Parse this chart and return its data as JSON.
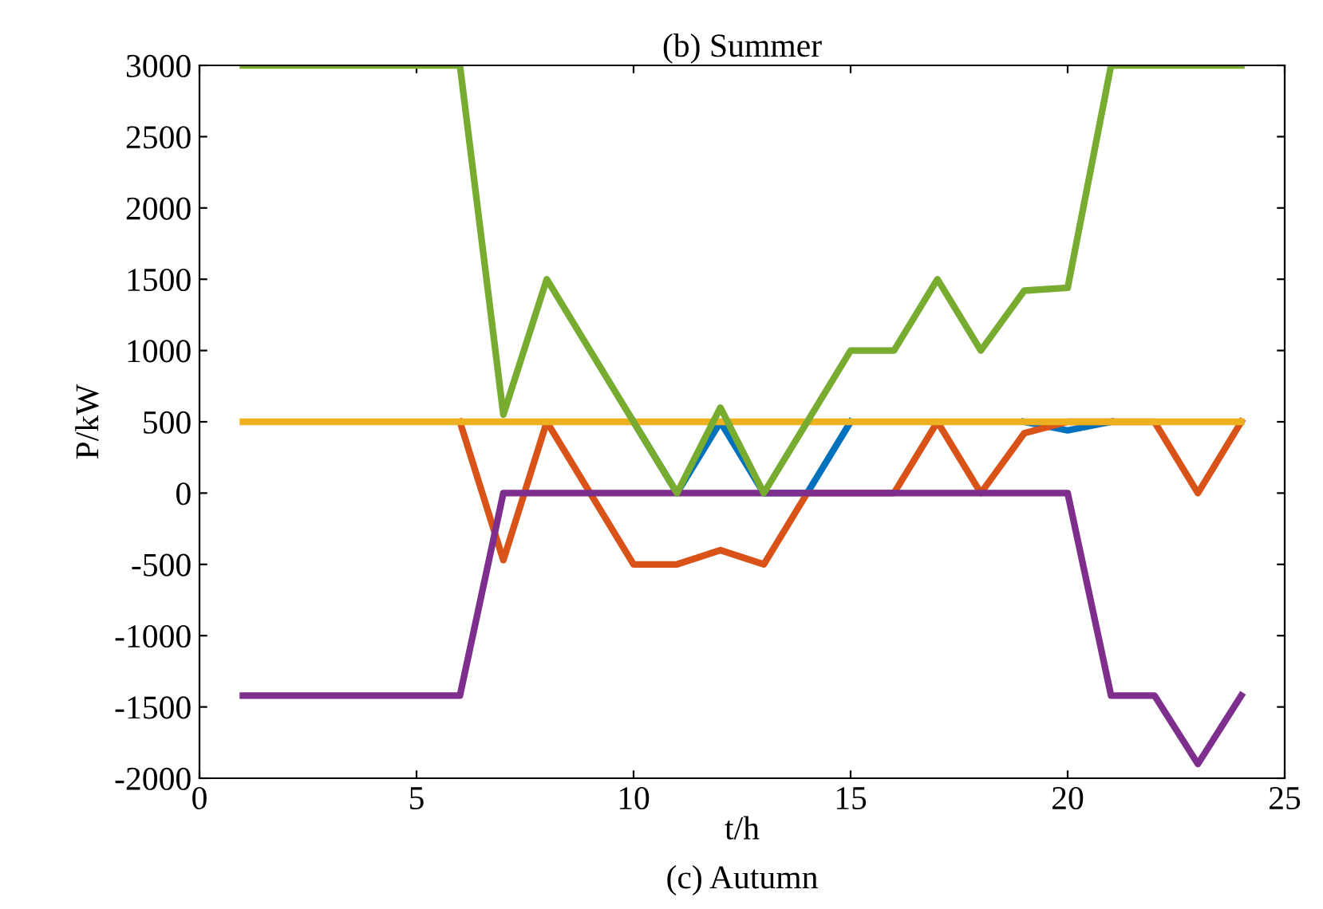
{
  "chart_data": {
    "type": "line",
    "title": "(b) Summer",
    "xlabel": "t/h",
    "ylabel": "P/kW",
    "annotations": [
      "(c) Autumn"
    ],
    "x": [
      1,
      2,
      3,
      4,
      5,
      6,
      7,
      8,
      9,
      10,
      11,
      12,
      13,
      14,
      15,
      16,
      17,
      18,
      19,
      20,
      21,
      22,
      23,
      24
    ],
    "series": [
      {
        "color": "#0072bd",
        "values": [
          null,
          null,
          null,
          null,
          null,
          null,
          null,
          null,
          null,
          500,
          0,
          500,
          0,
          0,
          500,
          null,
          null,
          null,
          500,
          440,
          500,
          null,
          null,
          null
        ]
      },
      {
        "color": "#d95319",
        "values": [
          null,
          null,
          null,
          null,
          null,
          500,
          -470,
          500,
          0,
          -500,
          -500,
          -400,
          -500,
          0,
          0,
          0,
          500,
          0,
          420,
          500,
          500,
          500,
          0,
          500
        ]
      },
      {
        "color": "#edb120",
        "values": [
          500,
          500,
          500,
          500,
          500,
          500,
          500,
          500,
          500,
          500,
          500,
          500,
          500,
          500,
          500,
          500,
          500,
          500,
          500,
          500,
          500,
          500,
          500,
          500
        ]
      },
      {
        "color": "#7e2f8e",
        "values": [
          -1420,
          -1420,
          -1420,
          -1420,
          -1420,
          -1420,
          0,
          0,
          0,
          0,
          0,
          0,
          0,
          0,
          0,
          0,
          0,
          0,
          0,
          0,
          -1420,
          -1420,
          -1900,
          -1420
        ]
      },
      {
        "color": "#77ac30",
        "values": [
          3000,
          3000,
          3000,
          3000,
          3000,
          3000,
          550,
          1500,
          1000,
          500,
          0,
          600,
          0,
          500,
          1000,
          1000,
          1500,
          1000,
          1420,
          1440,
          3000,
          3000,
          3000,
          3000
        ]
      }
    ],
    "xlim": [
      0,
      25
    ],
    "xticks": [
      0,
      5,
      10,
      15,
      20,
      25
    ],
    "ylim": [
      -2000,
      3000
    ],
    "yticks": [
      -2000,
      -1500,
      -1000,
      -500,
      0,
      500,
      1000,
      1500,
      2000,
      2500,
      3000
    ],
    "grid": false,
    "legend": false,
    "marker": "none",
    "line_style": "solid"
  }
}
